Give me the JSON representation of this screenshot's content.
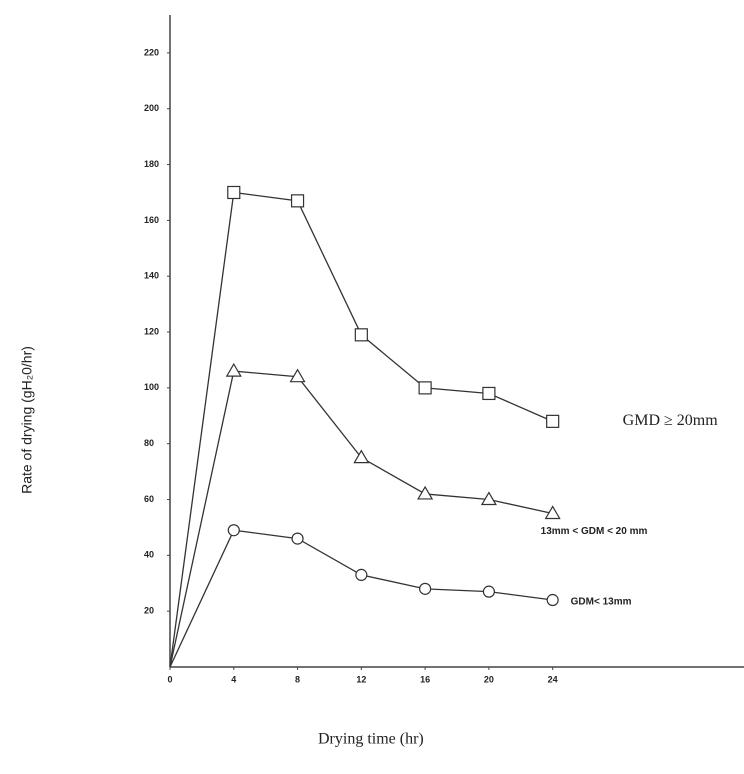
{
  "chart_data": {
    "type": "line",
    "x_label": "Drying time (hr)",
    "y_label": "Rate of drying (gH₂0/hr)",
    "x": [
      0,
      4,
      8,
      12,
      16,
      20,
      24
    ],
    "series": [
      {
        "name": "GMD ≥ 20mm",
        "color": "#333333",
        "marker": "square",
        "values": [
          0,
          170,
          167,
          119,
          100,
          98,
          88
        ]
      },
      {
        "name": "13mm  <  GDM < 20 mm",
        "color": "#333333",
        "marker": "triangle",
        "values": [
          0,
          106,
          104,
          75,
          62,
          60,
          55
        ]
      },
      {
        "name": "GDM< 13mm",
        "color": "#333333",
        "marker": "circle",
        "values": [
          0,
          49,
          46,
          33,
          28,
          27,
          24
        ]
      }
    ],
    "xlim": [
      0,
      36
    ],
    "xticks": [
      0,
      4,
      8,
      12,
      16,
      20,
      24
    ],
    "ylim": [
      0,
      230
    ],
    "yticks": [
      20,
      40,
      60,
      80,
      100,
      120,
      140,
      160,
      180,
      200,
      220
    ]
  }
}
